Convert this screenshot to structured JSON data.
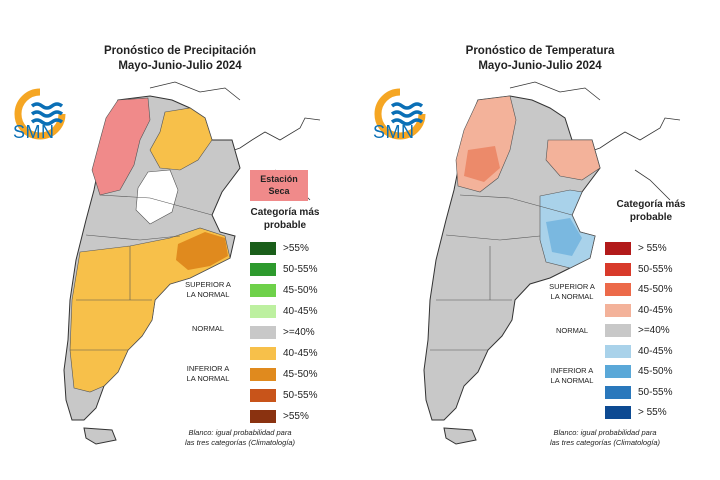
{
  "panels": {
    "precip": {
      "title_line1": "Pronóstico de Precipitación",
      "title_line2": "Mayo-Junio-Julio 2024",
      "logo_text": "SMN",
      "dry_season_line1": "Estación",
      "dry_season_line2": "Seca",
      "legend_title_line1": "Categoría más",
      "legend_title_line2": "probable",
      "legend": [
        {
          "label": ">55%",
          "color": "#1a5e1a"
        },
        {
          "label": "50-55%",
          "color": "#2e9a2e"
        },
        {
          "label": "45-50%",
          "color": "#6ed14a"
        },
        {
          "label": "40-45%",
          "color": "#bdf0a0"
        },
        {
          "label": ">=40%",
          "color": "#c8c8c8"
        },
        {
          "label": "40-45%",
          "color": "#f7c04a"
        },
        {
          "label": "45-50%",
          "color": "#e08a1e"
        },
        {
          "label": "50-55%",
          "color": "#c8541a"
        },
        {
          "label": ">55%",
          "color": "#8a3210"
        }
      ],
      "cat_superior_line1": "SUPERIOR A",
      "cat_superior_line2": "LA NORMAL",
      "cat_normal": "NORMAL",
      "cat_inferior_line1": "INFERIOR A",
      "cat_inferior_line2": "LA NORMAL",
      "note_line1": "Blanco: igual probabilidad para",
      "note_line2": "las tres categorías (Climatología)"
    },
    "temp": {
      "title_line1": "Pronóstico de Temperatura",
      "title_line2": "Mayo-Junio-Julio 2024",
      "logo_text": "SMN",
      "legend_title_line1": "Categoría más",
      "legend_title_line2": "probable",
      "legend": [
        {
          "label": "> 55%",
          "color": "#b21a1a"
        },
        {
          "label": "50-55%",
          "color": "#d83a2a"
        },
        {
          "label": "45-50%",
          "color": "#ec6a4a"
        },
        {
          "label": "40-45%",
          "color": "#f3b29a"
        },
        {
          "label": ">=40%",
          "color": "#c8c8c8"
        },
        {
          "label": "40-45%",
          "color": "#a9d2ea"
        },
        {
          "label": "45-50%",
          "color": "#5aa8d8"
        },
        {
          "label": "50-55%",
          "color": "#2a78bc"
        },
        {
          "label": "> 55%",
          "color": "#0d4a92"
        }
      ],
      "cat_superior_line1": "SUPERIOR A",
      "cat_superior_line2": "LA NORMAL",
      "cat_normal": "NORMAL",
      "cat_inferior_line1": "INFERIOR A",
      "cat_inferior_line2": "LA NORMAL",
      "note_line1": "Blanco: igual probabilidad para",
      "note_line2": "las tres categorías (Climatología)"
    }
  },
  "colors": {
    "logo_orange": "#f5a623",
    "logo_blue": "#0a6fb6",
    "map_gray": "#c8c8c8",
    "precip_dry": "#f08a8a",
    "precip_below": "#f7c04a",
    "precip_below_strong": "#e08a1e",
    "temp_above": "#f3b29a",
    "temp_above_strong": "#ec8a6a",
    "temp_below": "#a9d2ea",
    "temp_below_strong": "#7ab8e0"
  },
  "icons": {
    "logo": "smn-logo-icon"
  }
}
